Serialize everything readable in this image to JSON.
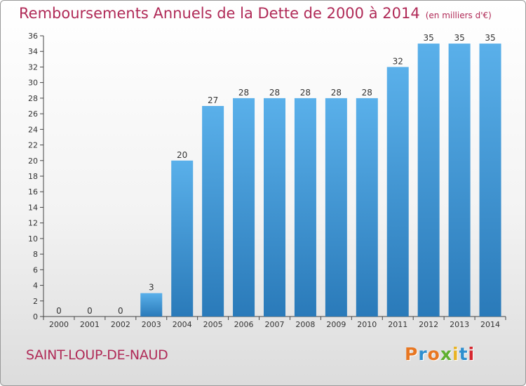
{
  "header": {
    "title": "Remboursements Annuels de la Dette de 2000 à 2014",
    "unit": "(en milliers d'€)"
  },
  "footer": {
    "commune": "SAINT-LOUP-DE-NAUD",
    "logo": "Proxiti"
  },
  "colors": {
    "title": "#b02a57",
    "bar_light": "#5ab0ea",
    "bar_dark": "#2a7ab9",
    "logo_letters": [
      "#e87722",
      "#2e8fcf",
      "#e87722",
      "#5fb030",
      "#e8b322",
      "#2e8fcf",
      "#d6262f"
    ]
  },
  "chart_data": {
    "type": "bar",
    "title": "Remboursements Annuels de la Dette de 2000 à 2014",
    "xlabel": "",
    "ylabel": "",
    "unit": "milliers d'€",
    "categories": [
      "2000",
      "2001",
      "2002",
      "2003",
      "2004",
      "2005",
      "2006",
      "2007",
      "2008",
      "2009",
      "2010",
      "2011",
      "2012",
      "2013",
      "2014"
    ],
    "values": [
      0,
      0,
      0,
      3,
      20,
      27,
      28,
      28,
      28,
      28,
      28,
      32,
      35,
      35,
      35
    ],
    "ylim": [
      0,
      36
    ],
    "ytick_step": 2,
    "grid": false,
    "data_labels": true
  }
}
